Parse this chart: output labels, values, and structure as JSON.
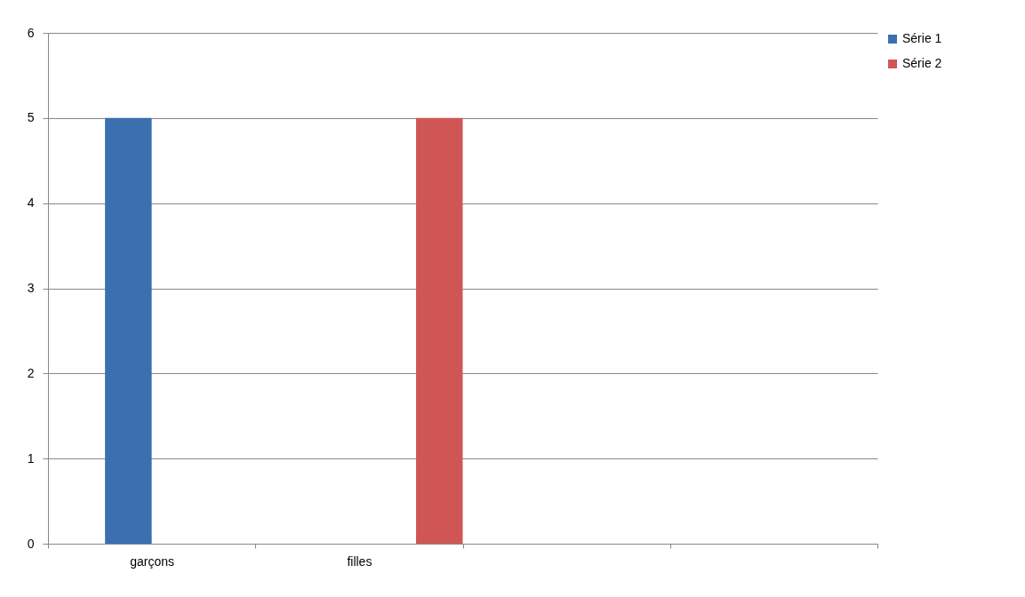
{
  "chart_data": {
    "type": "bar",
    "categories": [
      "garçons",
      "filles",
      null,
      null
    ],
    "series": [
      {
        "name": "Série 1",
        "color": "#3a6fb0",
        "values": [
          5,
          null,
          null,
          null
        ]
      },
      {
        "name": "Série 2",
        "color": "#d05656",
        "values": [
          null,
          5,
          null,
          null
        ]
      }
    ],
    "ylim": [
      0,
      6
    ],
    "yticks": [
      0,
      1,
      2,
      3,
      4,
      5,
      6
    ],
    "grid": "y",
    "legend": "right"
  }
}
